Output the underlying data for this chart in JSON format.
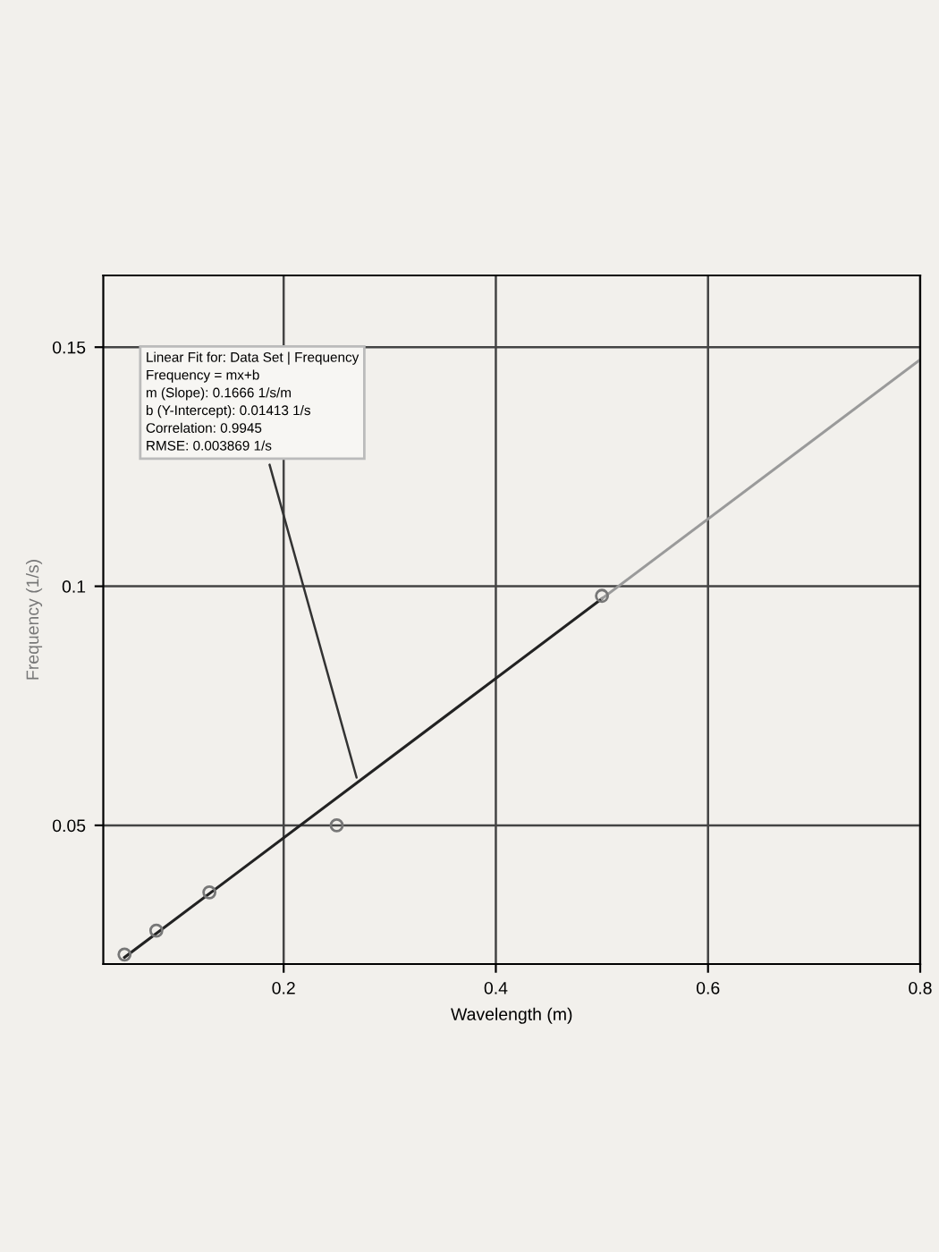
{
  "chart_data": {
    "type": "scatter",
    "xlabel": "Wavelength (m)",
    "ylabel": "Frequency (1/s)",
    "series": [
      {
        "color": "#777777",
        "marker": "circle",
        "x": [
          0.05,
          0.08,
          0.13,
          0.25,
          0.5
        ],
        "values": [
          0.023,
          0.028,
          0.036,
          0.05,
          0.098
        ]
      },
      {
        "type": "line",
        "color": "#222222",
        "marker": "none",
        "x": [
          0.05,
          0.5
        ],
        "values": [
          0.0224,
          0.0974
        ]
      },
      {
        "type": "line",
        "color": "#9a9a9a",
        "marker": "none",
        "x": [
          0.5,
          0.8
        ],
        "values": [
          0.0974,
          0.1474
        ]
      }
    ],
    "annotations": [
      {
        "text": "Linear Fit for: Data Set | Frequency\nFrequency = mx+b\nm (Slope): 0.1666 1/s/m\nb (Y-Intercept): 0.01413 1/s\nCorrelation: 0.9945\nRMSE: 0.003869 1/s",
        "x": 0.27,
        "y": 0.059
      }
    ],
    "xlim": [
      0.03,
      0.8
    ],
    "ylim": [
      0.021,
      0.165
    ],
    "xticks": [
      0.2,
      0.4,
      0.6,
      0.8
    ],
    "yticks": [
      0.05,
      0.1,
      0.15
    ],
    "grid": true
  }
}
